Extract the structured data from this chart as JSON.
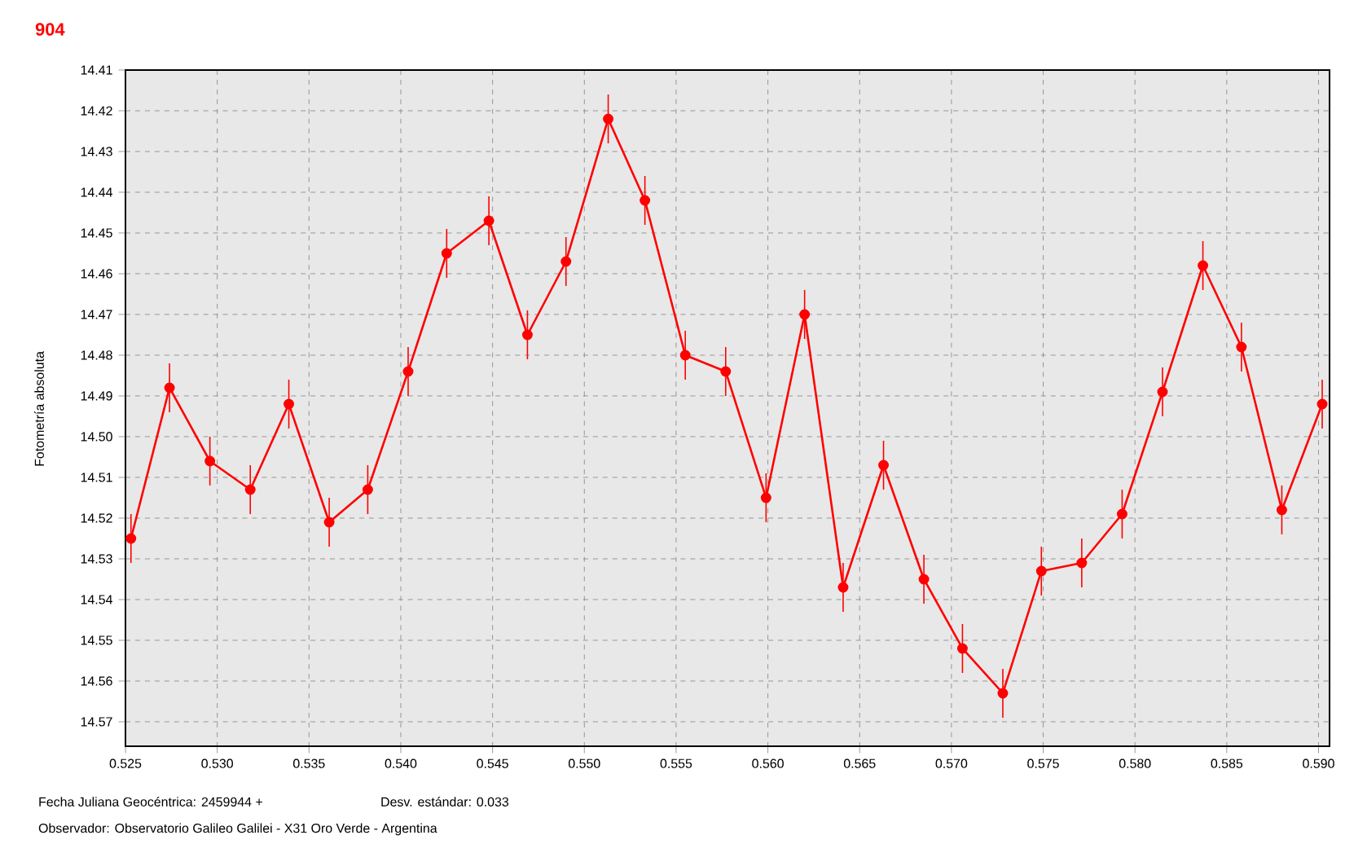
{
  "chart_data": {
    "type": "line",
    "title": "904",
    "ylabel": "Fotometría absoluta",
    "xlabel": "Fecha Juliana Geocéntrica: 2459944 +",
    "annotations": [
      "Desv. estándar: 0.033",
      "Observador: Observatorio Galileo Galilei - X31 Oro Verde - Argentina"
    ],
    "series": [
      {
        "color": "#ff0000",
        "x": [
          0.5253,
          0.5274,
          0.5296,
          0.5318,
          0.5339,
          0.5361,
          0.5382,
          0.5404,
          0.5425,
          0.5448,
          0.5469,
          0.549,
          0.5513,
          0.5533,
          0.5555,
          0.5577,
          0.5599,
          0.562,
          0.5641,
          0.5663,
          0.5685,
          0.5706,
          0.5728,
          0.5749,
          0.5771,
          0.5793,
          0.5815,
          0.5837,
          0.5858,
          0.588,
          0.5902
        ],
        "values": [
          14.525,
          14.488,
          14.506,
          14.513,
          14.492,
          14.521,
          14.513,
          14.484,
          14.455,
          14.447,
          14.475,
          14.457,
          14.422,
          14.442,
          14.48,
          14.484,
          14.515,
          14.47,
          14.537,
          14.507,
          14.535,
          14.552,
          14.563,
          14.533,
          14.531,
          14.519,
          14.489,
          14.458,
          14.478,
          14.518,
          14.492
        ],
        "errors": [
          0.006,
          0.006,
          0.006,
          0.006,
          0.006,
          0.006,
          0.006,
          0.006,
          0.006,
          0.006,
          0.006,
          0.006,
          0.006,
          0.006,
          0.006,
          0.006,
          0.006,
          0.006,
          0.006,
          0.006,
          0.006,
          0.006,
          0.006,
          0.006,
          0.006,
          0.006,
          0.006,
          0.006,
          0.006,
          0.006,
          0.006
        ]
      }
    ],
    "xlim": [
      0.525,
      0.5906
    ],
    "ylim": [
      14.576,
      14.41
    ],
    "xticks": [
      {
        "value": 0.525,
        "label": "0.525"
      },
      {
        "value": 0.53,
        "label": "0.530"
      },
      {
        "value": 0.535,
        "label": "0.535"
      },
      {
        "value": 0.54,
        "label": "0.540"
      },
      {
        "value": 0.545,
        "label": "0.545"
      },
      {
        "value": 0.55,
        "label": "0.550"
      },
      {
        "value": 0.555,
        "label": "0.555"
      },
      {
        "value": 0.56,
        "label": "0.560"
      },
      {
        "value": 0.565,
        "label": "0.565"
      },
      {
        "value": 0.57,
        "label": "0.570"
      },
      {
        "value": 0.575,
        "label": "0.575"
      },
      {
        "value": 0.58,
        "label": "0.580"
      },
      {
        "value": 0.585,
        "label": "0.585"
      },
      {
        "value": 0.59,
        "label": "0.590"
      }
    ],
    "yticks": [
      {
        "value": 14.41,
        "label": "14.41"
      },
      {
        "value": 14.42,
        "label": "14.42"
      },
      {
        "value": 14.43,
        "label": "14.43"
      },
      {
        "value": 14.44,
        "label": "14.44"
      },
      {
        "value": 14.45,
        "label": "14.45"
      },
      {
        "value": 14.46,
        "label": "14.46"
      },
      {
        "value": 14.47,
        "label": "14.47"
      },
      {
        "value": 14.48,
        "label": "14.48"
      },
      {
        "value": 14.49,
        "label": "14.49"
      },
      {
        "value": 14.5,
        "label": "14.50"
      },
      {
        "value": 14.51,
        "label": "14.51"
      },
      {
        "value": 14.52,
        "label": "14.52"
      },
      {
        "value": 14.53,
        "label": "14.53"
      },
      {
        "value": 14.54,
        "label": "14.54"
      },
      {
        "value": 14.55,
        "label": "14.55"
      },
      {
        "value": 14.56,
        "label": "14.56"
      },
      {
        "value": 14.57,
        "label": "14.57"
      }
    ],
    "grid": true,
    "marker": "circle",
    "line_style": "solid"
  }
}
